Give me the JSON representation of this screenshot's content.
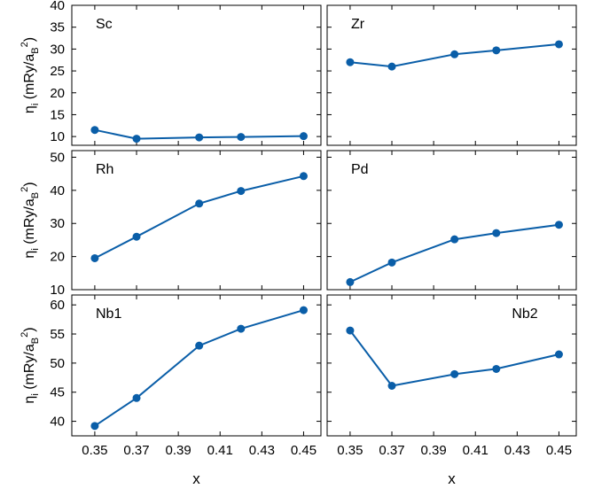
{
  "chart_data": [
    {
      "type": "line",
      "panel_label": "Sc",
      "x": [
        0.35,
        0.37,
        0.4,
        0.42,
        0.45
      ],
      "values": [
        11.5,
        9.5,
        9.8,
        9.9,
        10.1
      ],
      "ylabel": "η_i (mRy/a_B^2)",
      "ylim": [
        8,
        40
      ],
      "yticks": [
        10,
        15,
        20,
        25,
        30,
        35,
        40
      ],
      "label_pos": "top-left"
    },
    {
      "type": "line",
      "panel_label": "Zr",
      "x": [
        0.35,
        0.37,
        0.4,
        0.42,
        0.45
      ],
      "values": [
        27.0,
        26.0,
        28.8,
        29.7,
        31.1
      ],
      "ylim": [
        8,
        40
      ],
      "label_pos": "top-left"
    },
    {
      "type": "line",
      "panel_label": "Rh",
      "x": [
        0.35,
        0.37,
        0.4,
        0.42,
        0.45
      ],
      "values": [
        19.5,
        26.0,
        36.0,
        39.8,
        44.3
      ],
      "ylabel": "η_i (mRy/a_B^2)",
      "ylim": [
        10,
        52
      ],
      "yticks": [
        10,
        20,
        30,
        40,
        50
      ],
      "label_pos": "top-left"
    },
    {
      "type": "line",
      "panel_label": "Pd",
      "x": [
        0.35,
        0.37,
        0.4,
        0.42,
        0.45
      ],
      "values": [
        12.3,
        18.2,
        25.2,
        27.1,
        29.6
      ],
      "ylim": [
        10,
        52
      ],
      "label_pos": "top-left"
    },
    {
      "type": "line",
      "panel_label": "Nb1",
      "x": [
        0.35,
        0.37,
        0.4,
        0.42,
        0.45
      ],
      "values": [
        39.2,
        44.0,
        53.0,
        55.9,
        59.1
      ],
      "ylabel": "η_i (mRy/a_B^2)",
      "xlabel": "x",
      "ylim": [
        37.5,
        61.7
      ],
      "yticks": [
        40,
        45,
        50,
        55,
        60
      ],
      "xticks": [
        "0.35",
        "0.37",
        "0.39",
        "0.41",
        "0.43",
        "0.45"
      ],
      "label_pos": "top-left"
    },
    {
      "type": "line",
      "panel_label": "Nb2",
      "x": [
        0.35,
        0.37,
        0.4,
        0.42,
        0.45
      ],
      "values": [
        55.6,
        46.1,
        48.1,
        49.0,
        51.5
      ],
      "xlabel": "x",
      "ylim": [
        37.5,
        61.7
      ],
      "xticks": [
        "0.35",
        "0.37",
        "0.39",
        "0.41",
        "0.43",
        "0.45"
      ],
      "label_pos": "top-right"
    }
  ],
  "style": {
    "series_color": "#0a5ea8"
  }
}
